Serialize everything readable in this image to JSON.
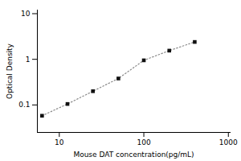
{
  "chart_data": {
    "type": "line",
    "xlabel": "Mouse DAT concentration(pg/mL)",
    "ylabel": "Optical Density",
    "x": [
      6.25,
      12.5,
      25,
      50,
      100,
      200,
      400
    ],
    "series": [
      {
        "type": "line",
        "color": "#888888",
        "line_style": "dotted",
        "values": [
          0.058,
          0.105,
          0.2,
          0.38,
          0.95,
          1.55,
          2.4
        ]
      },
      {
        "type": "scatter",
        "color": "#111111",
        "marker": "square",
        "values": [
          0.058,
          0.105,
          0.2,
          0.38,
          0.95,
          1.55,
          2.4
        ]
      }
    ],
    "xlim": [
      5.5,
      1050
    ],
    "ylim": [
      0.025,
      12
    ],
    "xticks": [
      10,
      100,
      1000
    ],
    "yticks": [
      0.1,
      1,
      10
    ],
    "log": true,
    "grid": false
  }
}
